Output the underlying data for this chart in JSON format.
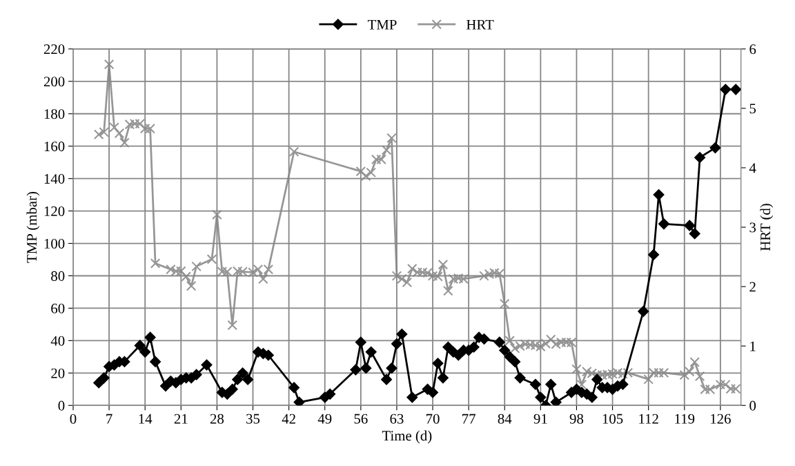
{
  "chart_data": {
    "type": "line",
    "xlabel": "Time (d)",
    "ylabel": "TMP (mbar)",
    "y2label": "HRT (d)",
    "xlim": [
      0,
      130
    ],
    "xticks": [
      0,
      7,
      14,
      21,
      28,
      35,
      42,
      49,
      56,
      63,
      70,
      77,
      84,
      91,
      98,
      105,
      112,
      119,
      126
    ],
    "ylim": [
      0,
      220
    ],
    "yticks": [
      0,
      20,
      40,
      60,
      80,
      100,
      120,
      140,
      160,
      180,
      200,
      220
    ],
    "y2lim": [
      0,
      6
    ],
    "y2ticks": [
      0,
      1,
      2,
      3,
      4,
      5,
      6
    ],
    "grid": true,
    "legend": "top",
    "series": [
      {
        "name": "TMP",
        "color": "#000000",
        "marker": "diamond",
        "x": [
          5,
          6,
          7,
          8,
          9,
          10,
          13,
          14,
          15,
          16,
          18,
          19,
          20,
          21,
          22,
          23,
          24,
          26,
          29,
          30,
          31,
          32,
          33,
          34,
          36,
          37,
          38,
          43,
          44,
          49,
          50,
          55,
          56,
          57,
          58,
          61,
          62,
          63,
          64,
          66,
          69,
          70,
          71,
          72,
          73,
          74,
          75,
          76,
          77,
          78,
          79,
          80,
          83,
          84,
          85,
          86,
          87,
          90,
          91,
          92,
          93,
          94,
          97,
          98,
          99,
          100,
          101,
          102,
          103,
          104,
          105,
          106,
          107,
          111,
          113,
          114,
          115,
          120,
          121,
          122,
          125,
          127,
          129
        ],
        "values": [
          14,
          17,
          24,
          25,
          27,
          27,
          37,
          33,
          42,
          27,
          12,
          15,
          14,
          16,
          17,
          17,
          19,
          25,
          8,
          7,
          10,
          16,
          20,
          16,
          33,
          32,
          31,
          11,
          2,
          5,
          7,
          22,
          39,
          23,
          33,
          16,
          23,
          38,
          44,
          5,
          10,
          8,
          26,
          17,
          36,
          33,
          31,
          34,
          34,
          36,
          42,
          41,
          39,
          34,
          30,
          27,
          17,
          13,
          5,
          0,
          13,
          2,
          8,
          10,
          8,
          7,
          5,
          16,
          11,
          11,
          10,
          12,
          13,
          58,
          93,
          130,
          112,
          111,
          106,
          153,
          159,
          195,
          195
        ]
      },
      {
        "name": "HRT",
        "color": "#969696",
        "marker": "cross",
        "axis": "y2",
        "x": [
          5,
          6,
          7,
          8,
          9,
          10,
          11,
          12,
          13,
          14,
          15,
          16,
          19,
          20,
          21,
          22,
          23,
          24,
          27,
          28,
          29,
          30,
          31,
          32,
          33,
          35,
          36,
          37,
          38,
          43,
          56,
          57,
          58,
          59,
          60,
          61,
          62,
          63,
          64,
          65,
          66,
          67,
          68,
          69,
          70,
          71,
          72,
          73,
          74,
          75,
          76,
          80,
          81,
          82,
          83,
          84,
          85,
          86,
          87,
          88,
          89,
          90,
          91,
          92,
          93,
          94,
          95,
          96,
          97,
          98,
          99,
          100,
          101,
          102,
          103,
          104,
          105,
          106,
          107,
          108,
          112,
          113,
          114,
          115,
          119,
          120,
          121,
          122,
          123,
          124,
          126,
          127,
          128,
          129
        ],
        "values": [
          4.56,
          4.6,
          5.74,
          4.68,
          4.58,
          4.42,
          4.73,
          4.74,
          4.74,
          4.66,
          4.66,
          2.39,
          2.29,
          2.26,
          2.26,
          2.17,
          2.01,
          2.34,
          2.46,
          3.21,
          2.25,
          2.25,
          1.35,
          2.26,
          2.25,
          2.24,
          2.29,
          2.13,
          2.29,
          4.27,
          3.94,
          3.86,
          3.92,
          4.14,
          4.14,
          4.3,
          4.5,
          2.18,
          2.13,
          2.07,
          2.3,
          2.24,
          2.24,
          2.23,
          2.18,
          2.17,
          2.37,
          1.93,
          2.13,
          2.14,
          2.13,
          2.18,
          2.21,
          2.23,
          2.22,
          1.71,
          1.09,
          0.96,
          1.0,
          1.03,
          1.02,
          1.01,
          0.99,
          1.04,
          1.11,
          1.03,
          1.06,
          1.06,
          1.06,
          0.61,
          0.35,
          0.57,
          0.54,
          0.51,
          0.51,
          0.52,
          0.53,
          0.55,
          0.53,
          0.55,
          0.44,
          0.55,
          0.55,
          0.55,
          0.51,
          0.57,
          0.73,
          0.49,
          0.27,
          0.27,
          0.35,
          0.35,
          0.28,
          0.28
        ]
      }
    ]
  }
}
